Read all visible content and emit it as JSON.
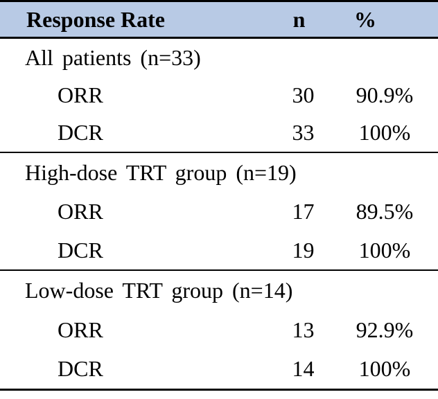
{
  "table": {
    "header": {
      "label": "Response Rate",
      "n": "n",
      "pct": "%"
    },
    "sections": [
      {
        "title": "All patients (n=33)",
        "rows": [
          {
            "label": "ORR",
            "n": "30",
            "pct": "90.9%"
          },
          {
            "label": "DCR",
            "n": "33",
            "pct": "100%"
          }
        ]
      },
      {
        "title": "High-dose TRT group (n=19)",
        "rows": [
          {
            "label": "ORR",
            "n": "17",
            "pct": "89.5%"
          },
          {
            "label": "DCR",
            "n": "19",
            "pct": "100%"
          }
        ]
      },
      {
        "title": "Low-dose TRT group (n=14)",
        "rows": [
          {
            "label": "ORR",
            "n": "13",
            "pct": "92.9%"
          },
          {
            "label": "DCR",
            "n": "14",
            "pct": "100%"
          }
        ]
      }
    ],
    "colors": {
      "header_bg": "#b8cae5",
      "border": "#000000",
      "text": "#000000"
    }
  }
}
